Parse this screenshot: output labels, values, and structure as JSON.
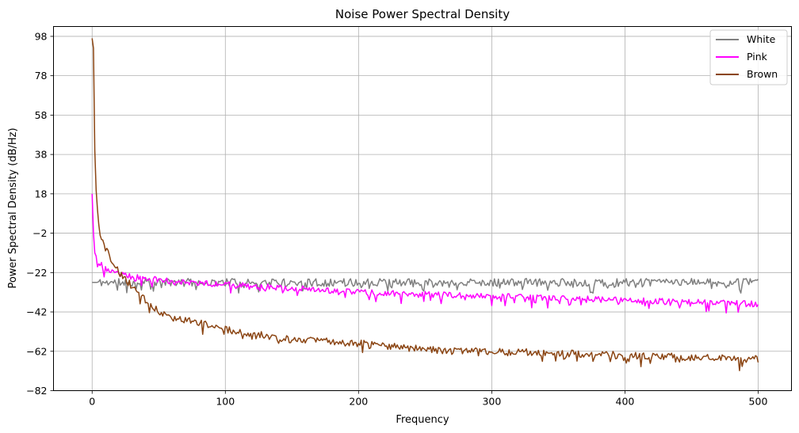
{
  "chart_data": {
    "type": "line",
    "title": "Noise Power Spectral Density",
    "xlabel": "Frequency",
    "ylabel": "Power Spectral Density (dB/Hz)",
    "xlim": [
      -29,
      525
    ],
    "ylim": [
      -82,
      103
    ],
    "xticks": [
      0,
      100,
      200,
      300,
      400,
      500
    ],
    "yticks": [
      -82,
      -62,
      -42,
      -22,
      -2,
      18,
      38,
      58,
      78,
      98
    ],
    "grid": true,
    "legend_position": "top-right",
    "series": [
      {
        "name": "White",
        "color": "#808080",
        "x_start": 0,
        "x_end": 500,
        "step": 1,
        "base": [
          [
            0,
            -27
          ],
          [
            500,
            -27
          ]
        ],
        "amplitude": 2.0,
        "dip_depth": 4.0,
        "seed": 11
      },
      {
        "name": "Pink",
        "color": "#ff00ff",
        "x_start": 0,
        "x_end": 500,
        "step": 1,
        "base": [
          [
            0,
            18
          ],
          [
            1,
            -2
          ],
          [
            2,
            -12
          ],
          [
            5,
            -17
          ],
          [
            10,
            -20
          ],
          [
            20,
            -23
          ],
          [
            40,
            -25
          ],
          [
            70,
            -27
          ],
          [
            100,
            -28
          ],
          [
            150,
            -30
          ],
          [
            200,
            -32
          ],
          [
            250,
            -33
          ],
          [
            300,
            -34
          ],
          [
            350,
            -35
          ],
          [
            400,
            -36
          ],
          [
            450,
            -37
          ],
          [
            500,
            -38
          ]
        ],
        "amplitude": 1.5,
        "dip_depth": 4.0,
        "seed": 23
      },
      {
        "name": "Brown",
        "color": "#8b4513",
        "x_start": 0,
        "x_end": 500,
        "step": 1,
        "base": [
          [
            0,
            97
          ],
          [
            1,
            92
          ],
          [
            2,
            40
          ],
          [
            3,
            20
          ],
          [
            4,
            10
          ],
          [
            6,
            -2
          ],
          [
            10,
            -10
          ],
          [
            15,
            -16
          ],
          [
            20,
            -22
          ],
          [
            30,
            -29
          ],
          [
            40,
            -36
          ],
          [
            50,
            -42
          ],
          [
            70,
            -46
          ],
          [
            100,
            -51
          ],
          [
            150,
            -56
          ],
          [
            200,
            -58
          ],
          [
            250,
            -61
          ],
          [
            300,
            -62
          ],
          [
            350,
            -63
          ],
          [
            400,
            -64
          ],
          [
            450,
            -65
          ],
          [
            500,
            -66
          ]
        ],
        "amplitude": 1.8,
        "dip_depth": 4.5,
        "seed": 37
      }
    ]
  }
}
